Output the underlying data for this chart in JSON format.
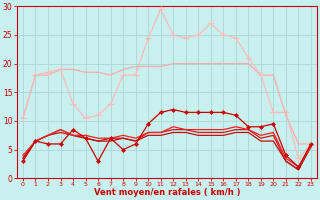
{
  "title": "",
  "xlabel": "Vent moyen/en rafales ( km/h )",
  "ylabel": "",
  "xlim": [
    -0.5,
    23.5
  ],
  "ylim": [
    0,
    30
  ],
  "yticks": [
    0,
    5,
    10,
    15,
    20,
    25,
    30
  ],
  "xticks": [
    0,
    1,
    2,
    3,
    4,
    5,
    6,
    7,
    8,
    9,
    10,
    11,
    12,
    13,
    14,
    15,
    16,
    17,
    18,
    19,
    20,
    21,
    22,
    23
  ],
  "background_color": "#c8f0ee",
  "grid_color": "#a8d8d4",
  "axis_color": "#cc0000",
  "tick_color": "#cc0000",
  "xlabel_color": "#cc0000",
  "lines": [
    {
      "x": [
        0,
        1,
        2,
        3,
        4,
        5,
        6,
        7,
        8,
        9,
        10,
        11,
        12,
        13,
        14,
        15,
        16,
        17,
        18,
        19,
        20,
        21,
        22,
        23
      ],
      "y": [
        10.5,
        18,
        18,
        19,
        19,
        18.5,
        18.5,
        18,
        19,
        19.5,
        19.5,
        19.5,
        20,
        20,
        20,
        20,
        20,
        20,
        20,
        18,
        18,
        11,
        6,
        6
      ],
      "color": "#ffaaaa",
      "linewidth": 0.9,
      "marker": null,
      "zorder": 2
    },
    {
      "x": [
        0,
        1,
        2,
        3,
        4,
        5,
        6,
        7,
        8,
        9,
        10,
        11,
        12,
        13,
        14,
        15,
        16,
        17,
        18,
        19,
        20,
        21,
        22,
        23
      ],
      "y": [
        10.5,
        18,
        18.5,
        19,
        13,
        10.5,
        11,
        13,
        18,
        18,
        24.5,
        29.5,
        25,
        24.5,
        25,
        27,
        25,
        24.5,
        21,
        18,
        11.5,
        11.5,
        3.5,
        6
      ],
      "color": "#ffbbbb",
      "linewidth": 0.9,
      "marker": "+",
      "markersize": 4,
      "markeredgewidth": 0.8,
      "zorder": 3
    },
    {
      "x": [
        0,
        1,
        2,
        3,
        4,
        5,
        6,
        7,
        8,
        9,
        10,
        11,
        12,
        13,
        14,
        15,
        16,
        17,
        18,
        19,
        20,
        21,
        22,
        23
      ],
      "y": [
        3,
        6.5,
        6,
        6,
        8.5,
        7,
        3,
        7,
        5,
        6,
        9.5,
        11.5,
        12,
        11.5,
        11.5,
        11.5,
        11.5,
        11,
        9,
        9,
        9.5,
        4,
        2,
        6
      ],
      "color": "#cc0000",
      "linewidth": 0.9,
      "marker": "D",
      "markersize": 2,
      "markeredgewidth": 0.5,
      "zorder": 4
    },
    {
      "x": [
        0,
        1,
        2,
        3,
        4,
        5,
        6,
        7,
        8,
        9,
        10,
        11,
        12,
        13,
        14,
        15,
        16,
        17,
        18,
        19,
        20,
        21,
        22,
        23
      ],
      "y": [
        3.5,
        6.5,
        7.5,
        8.5,
        7.5,
        7,
        6.5,
        7,
        7,
        6.5,
        8,
        8,
        8.5,
        8.5,
        8,
        8,
        8,
        8.5,
        8.5,
        7,
        7.5,
        3,
        1.5,
        6
      ],
      "color": "#dd1111",
      "linewidth": 0.9,
      "marker": null,
      "zorder": 3
    },
    {
      "x": [
        0,
        1,
        2,
        3,
        4,
        5,
        6,
        7,
        8,
        9,
        10,
        11,
        12,
        13,
        14,
        15,
        16,
        17,
        18,
        19,
        20,
        21,
        22,
        23
      ],
      "y": [
        3.5,
        6.5,
        7.5,
        8,
        7.5,
        7,
        6.5,
        6.5,
        7,
        6.5,
        7.5,
        7.5,
        8,
        8,
        7.5,
        7.5,
        7.5,
        8,
        8,
        6.5,
        6.5,
        3,
        1.5,
        5.5
      ],
      "color": "#bb1111",
      "linewidth": 0.9,
      "marker": null,
      "zorder": 3
    },
    {
      "x": [
        0,
        1,
        2,
        3,
        4,
        5,
        6,
        7,
        8,
        9,
        10,
        11,
        12,
        13,
        14,
        15,
        16,
        17,
        18,
        19,
        20,
        21,
        22,
        23
      ],
      "y": [
        4,
        6.5,
        7.5,
        8.5,
        7.5,
        7.5,
        7,
        7,
        7.5,
        7,
        8,
        8,
        9,
        8.5,
        8.5,
        8.5,
        8.5,
        9,
        8.5,
        7.5,
        8,
        3.5,
        2,
        5.5
      ],
      "color": "#ee2222",
      "linewidth": 0.9,
      "marker": null,
      "zorder": 3
    }
  ]
}
